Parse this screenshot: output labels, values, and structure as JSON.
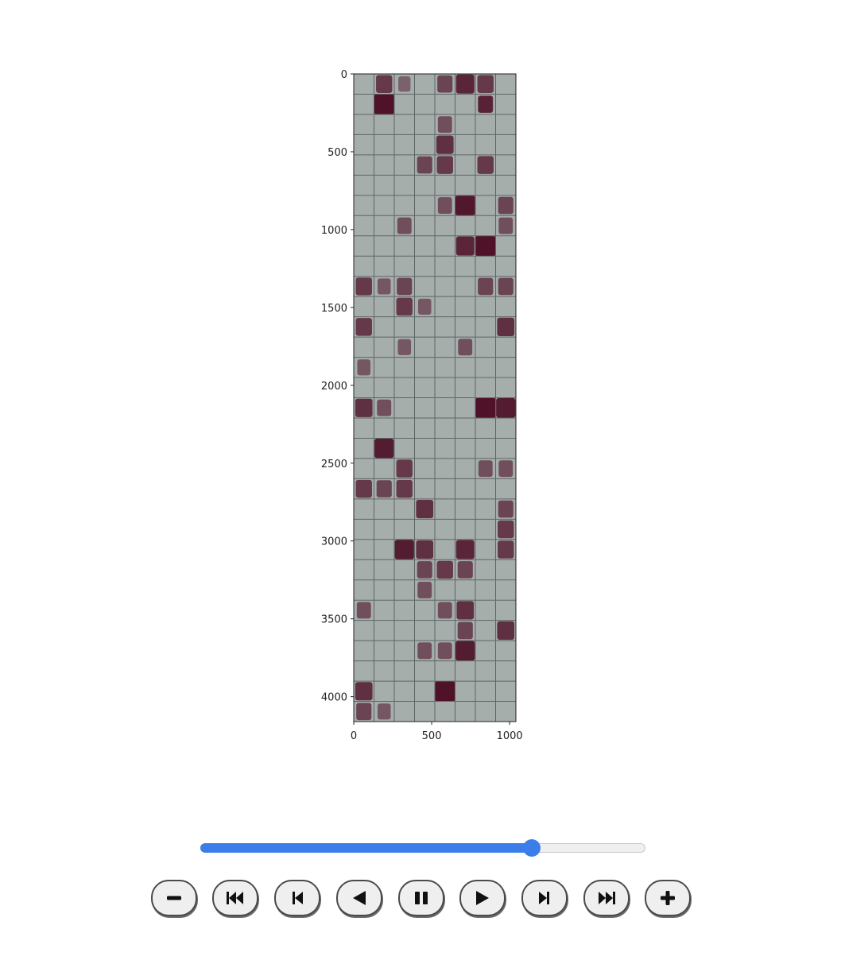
{
  "figure": {
    "y_axis": {
      "ticks": [
        "0",
        "500",
        "1000",
        "1500",
        "2000",
        "2500",
        "3000",
        "3500",
        "4000"
      ],
      "range": [
        0,
        4160
      ],
      "inverted": true
    },
    "x_axis": {
      "ticks": [
        "0",
        "500",
        "1000"
      ],
      "range": [
        0,
        1040
      ]
    },
    "grid": {
      "columns": 8,
      "rows": 32
    },
    "colors": {
      "background": "#a6aeac",
      "dark": "#4a0a22",
      "cell_border": "#5e6666"
    }
  },
  "player": {
    "progress": 0.745,
    "buttons": [
      {
        "name": "decrease-speed-button",
        "icon": "minus-icon"
      },
      {
        "name": "first-frame-button",
        "icon": "skip-to-start-icon"
      },
      {
        "name": "step-back-button",
        "icon": "step-back-icon"
      },
      {
        "name": "play-reverse-button",
        "icon": "play-reverse-icon"
      },
      {
        "name": "pause-button",
        "icon": "pause-icon"
      },
      {
        "name": "play-button",
        "icon": "play-icon"
      },
      {
        "name": "step-forward-button",
        "icon": "step-forward-icon"
      },
      {
        "name": "last-frame-button",
        "icon": "skip-to-end-icon"
      },
      {
        "name": "increase-speed-button",
        "icon": "plus-icon"
      }
    ],
    "accent_color": "#3b7de9"
  }
}
